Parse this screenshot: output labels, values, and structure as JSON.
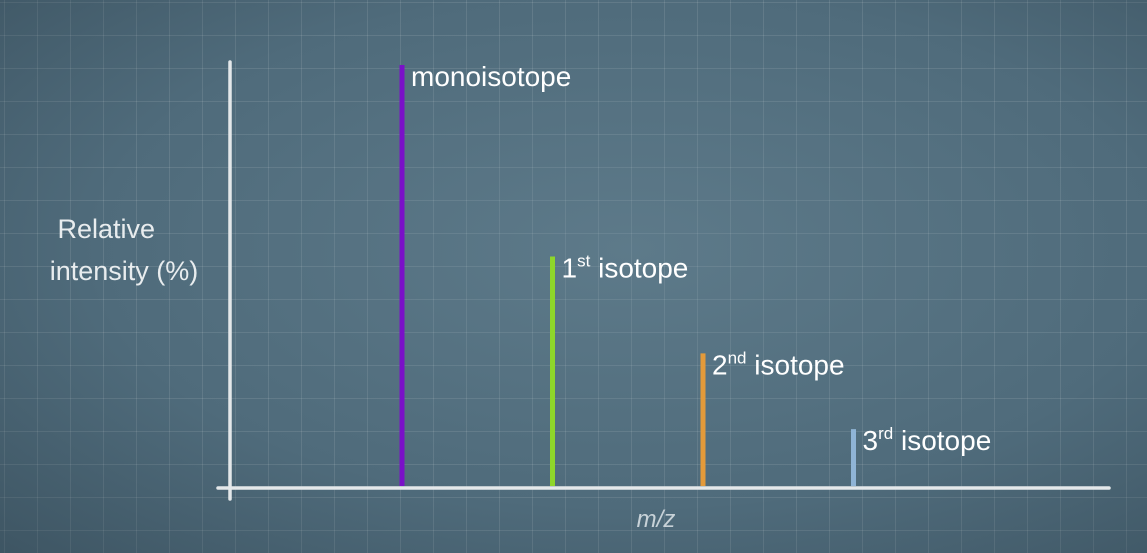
{
  "chart_data": {
    "type": "bar",
    "title": "",
    "ylabel": "Relative intensity (%)",
    "ylabel_lines": [
      "Relative",
      "intensity (%)"
    ],
    "xlabel": "m/z",
    "ylim": [
      0,
      100
    ],
    "grid": true,
    "peaks": [
      {
        "name": "monoisotope",
        "label_main": "monoisotope",
        "label_sup": "",
        "label_rest": "",
        "x": 0,
        "value": 100,
        "color": "#7a10c8"
      },
      {
        "name": "1st isotope",
        "label_main": "1",
        "label_sup": "st",
        "label_rest": " isotope",
        "x": 1,
        "value": 54.5,
        "color": "#8ed62a"
      },
      {
        "name": "2nd isotope",
        "label_main": "2",
        "label_sup": "nd",
        "label_rest": " isotope",
        "x": 2,
        "value": 31.5,
        "color": "#e39a3a"
      },
      {
        "name": "3rd isotope",
        "label_main": "3",
        "label_sup": "rd",
        "label_rest": " isotope",
        "x": 3,
        "value": 13.5,
        "color": "#8fb4d6"
      }
    ]
  }
}
